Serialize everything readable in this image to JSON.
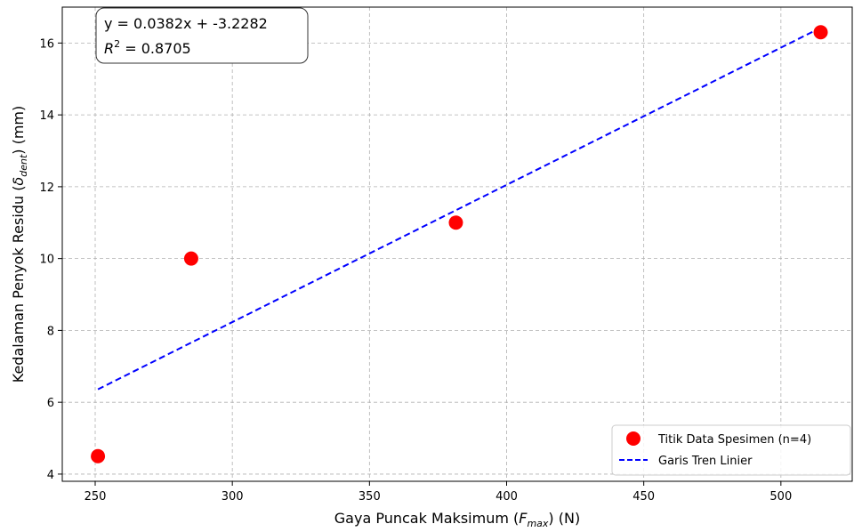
{
  "chart_data": {
    "type": "scatter",
    "xlabel": "Gaya Puncak Maksimum (F_max) (N)",
    "xlabel_parts": {
      "prefix": "Gaya Puncak Maksimum (",
      "var": "F",
      "sub": "max",
      "suffix": ") (N)"
    },
    "ylabel": "Kedalaman Penyok Residu (δ_dent) (mm)",
    "ylabel_parts": {
      "prefix": "Kedalaman Penyok Residu (",
      "var": "δ",
      "sub": "dent",
      "suffix": ") (mm)"
    },
    "xlim": [
      238,
      526
    ],
    "ylim": [
      3.8,
      17.0
    ],
    "xticks": [
      250,
      300,
      350,
      400,
      450,
      500
    ],
    "yticks": [
      4,
      6,
      8,
      10,
      12,
      14,
      16
    ],
    "grid": true,
    "series": [
      {
        "name": "Titik Data Spesimen (n=4)",
        "kind": "scatter",
        "color": "#ff0000",
        "x": [
          251,
          285,
          381.5,
          514.5
        ],
        "y": [
          4.5,
          10.0,
          11.0,
          16.3
        ]
      },
      {
        "name": "Garis Tren Linier",
        "kind": "line",
        "style": "dashed",
        "color": "#0000ff",
        "slope": 0.0382,
        "intercept": -3.2282,
        "x_range": [
          251,
          514.5
        ]
      }
    ],
    "annotation": {
      "equation": "y = 0.0382x + -3.2282",
      "r2_label": "R",
      "r2_sup": "2",
      "r2_value": " = 0.8705"
    },
    "legend_position": "lower-right"
  }
}
